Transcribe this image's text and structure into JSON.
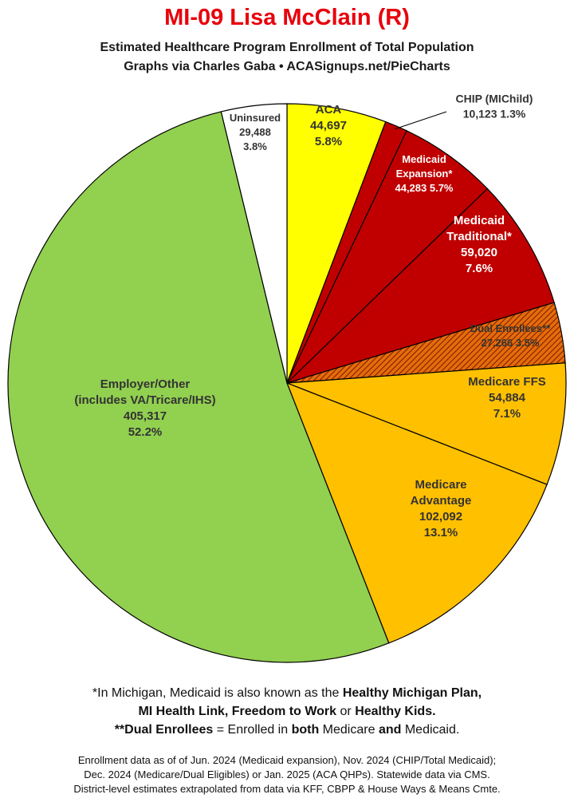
{
  "title": "MI-09 Lisa McClain (R)",
  "subtitle_line1": "Estimated Healthcare Program Enrollment of Total Population",
  "subtitle_line2": "Graphs via Charles Gaba  •  ACASignups.net/PieCharts",
  "chart_data": {
    "type": "pie",
    "slices": [
      {
        "label": [
          "ACA"
        ],
        "value": 44697,
        "value_text": "44,697",
        "pct": "5.8%",
        "color": "#ffff00",
        "text_color": "#333333"
      },
      {
        "label": [
          "CHIP (MIChild)"
        ],
        "value": 10123,
        "value_text": "10,123",
        "pct": "1.3%",
        "color": "#c00000",
        "text_color": "#333333"
      },
      {
        "label": [
          "Medicaid",
          "Expansion*"
        ],
        "value": 44283,
        "value_text": "44,283",
        "pct": "5.7%",
        "color": "#c00000",
        "text_color": "#ffffff"
      },
      {
        "label": [
          "Medicaid",
          "Traditional*"
        ],
        "value": 59020,
        "value_text": "59,020",
        "pct": "7.6%",
        "color": "#c00000",
        "text_color": "#ffffff"
      },
      {
        "label": [
          "Dual Enrollees**"
        ],
        "value": 27266,
        "value_text": "27,266",
        "pct": "3.5%",
        "color": "#e46c0a",
        "pattern": "hatch",
        "text_color": "#333333"
      },
      {
        "label": [
          "Medicare FFS"
        ],
        "value": 54884,
        "value_text": "54,884",
        "pct": "7.1%",
        "color": "#ffc000",
        "text_color": "#333333"
      },
      {
        "label": [
          "Medicare",
          "Advantage"
        ],
        "value": 102092,
        "value_text": "102,092",
        "pct": "13.1%",
        "color": "#ffc000",
        "text_color": "#333333"
      },
      {
        "label": [
          "Employer/Other",
          "(includes VA/Tricare/IHS)"
        ],
        "value": 405317,
        "value_text": "405,317",
        "pct": "52.2%",
        "color": "#92d050",
        "text_color": "#333333"
      },
      {
        "label": [
          "Uninsured"
        ],
        "value": 29488,
        "value_text": "29,488",
        "pct": "3.8%",
        "color": "#ffffff",
        "text_color": "#333333"
      }
    ]
  },
  "footnote1": {
    "a": "*In Michigan, Medicaid is also known as the ",
    "b": "Healthy Michigan Plan,"
  },
  "footnote2": {
    "a": "MI Health Link",
    "b": ", ",
    "c": "Freedom to Work",
    "d": " or ",
    "e": "Healthy Kids."
  },
  "footnote3": {
    "a": "**Dual Enrollees",
    "b": " = Enrolled in ",
    "c": "both",
    "d": " Medicare ",
    "e": "and",
    "f": " Medicaid."
  },
  "source1": "Enrollment data as of of Jun. 2024 (Medicaid expansion), Nov. 2024 (CHIP/Total Medicaid);",
  "source2": "Dec. 2024 (Medicare/Dual Eligibles) or Jan. 2025 (ACA QHPs). Statewide data via CMS.",
  "source3": "District-level estimates extrapolated from data via KFF, CBPP & House Ways & Means Cmte."
}
